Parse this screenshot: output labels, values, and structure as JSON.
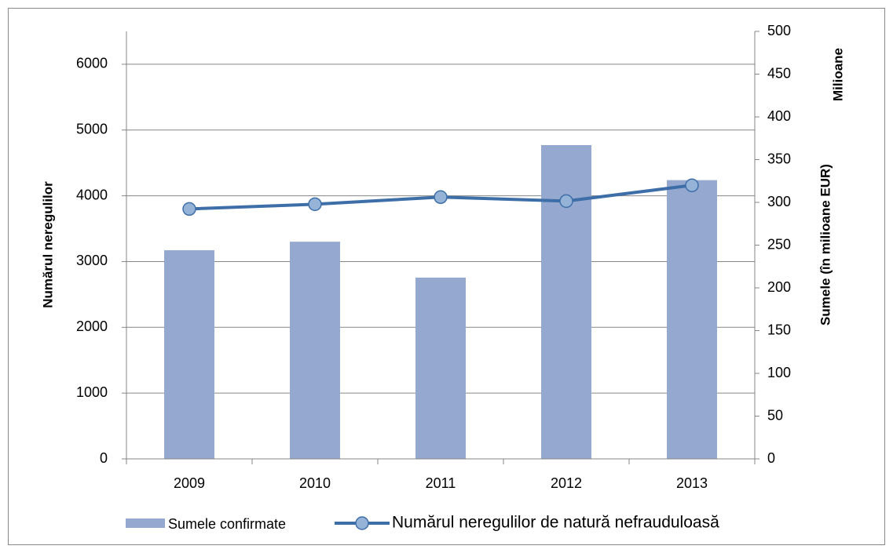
{
  "chart_data": {
    "type": "bar",
    "categories": [
      "2009",
      "2010",
      "2011",
      "2012",
      "2013"
    ],
    "series": [
      {
        "name": "Sumele confirmate",
        "type": "bar",
        "axis": "y2",
        "color": "#95a9d0",
        "values": [
          244,
          254,
          212,
          367,
          326
        ]
      },
      {
        "name": "Numărul neregulilor de natură nefrauduloasă",
        "type": "line",
        "color": "#3d6ea8",
        "values": [
          3800,
          3872,
          3980,
          3920,
          4159
        ]
      }
    ],
    "y_label": "Numărul neregulilor",
    "y2_label": "Sumele (în milioane EUR)",
    "y2_unit_label": "Milioane",
    "ylim": [
      0,
      6500
    ],
    "yticks": [
      0,
      1000,
      2000,
      3000,
      4000,
      5000,
      6000
    ],
    "y2lim": [
      0,
      500
    ],
    "y2ticks": [
      0,
      50,
      100,
      150,
      200,
      250,
      300,
      350,
      400,
      450,
      500
    ],
    "grid": true,
    "legend": "bottom"
  }
}
